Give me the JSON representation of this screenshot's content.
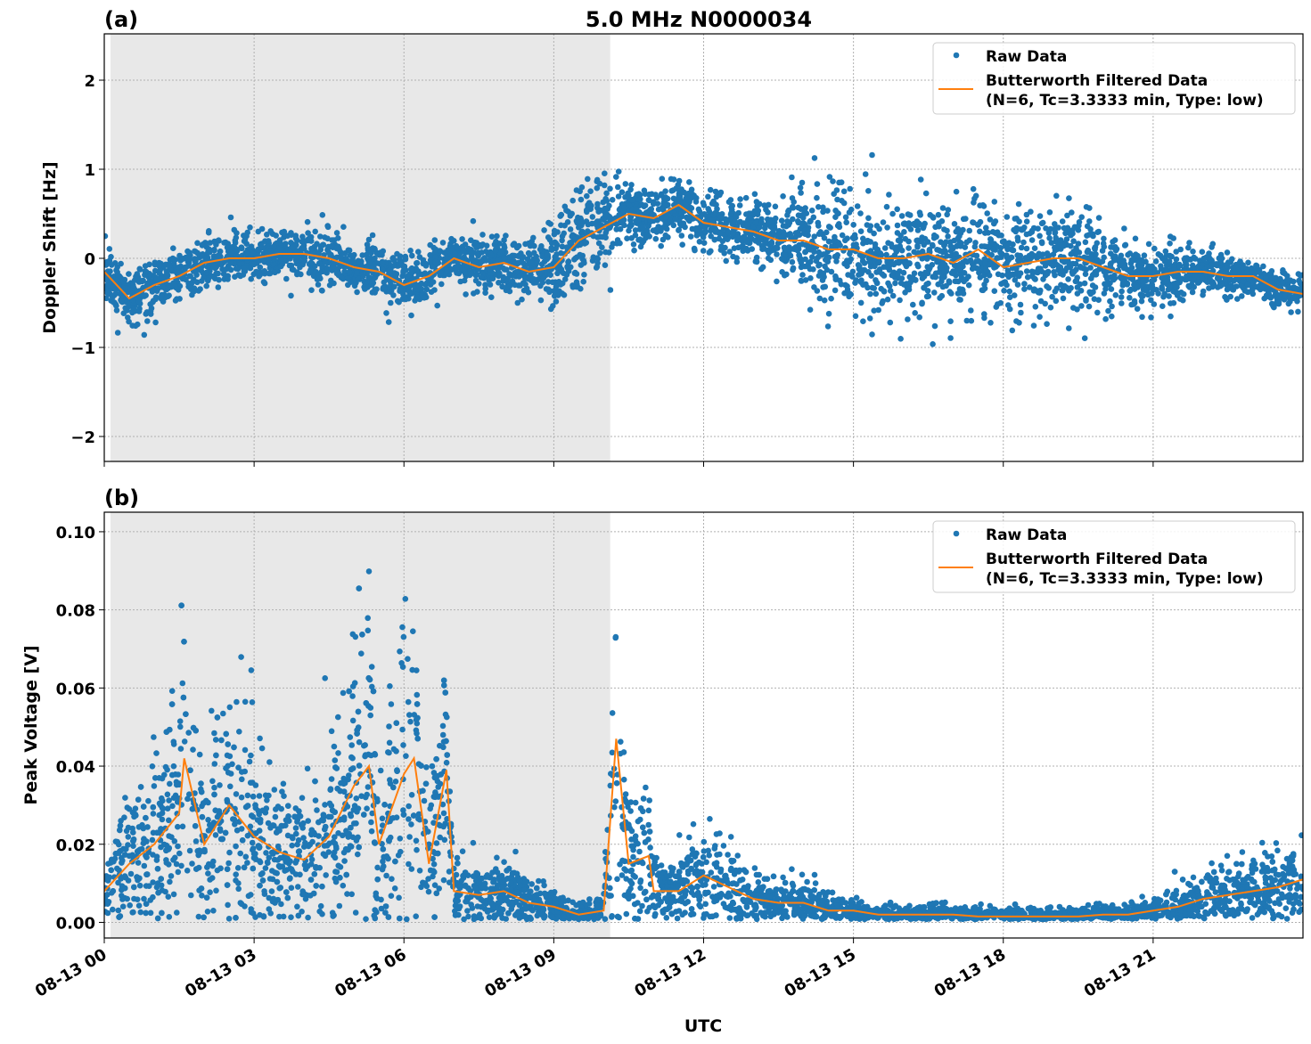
{
  "chart_data": [
    {
      "type": "scatter",
      "panel_label": "(a)",
      "title": "5.0 MHz N0000034",
      "xlabel": "",
      "ylabel": "Doppler Shift [Hz]",
      "xlim_hours": [
        0,
        24
      ],
      "ylim": [
        -2.28,
        2.52
      ],
      "yticks": [
        -2,
        -1,
        0,
        1,
        2
      ],
      "ytick_labels": [
        "−2",
        "−1",
        "0",
        "1",
        "2"
      ],
      "grid": true,
      "shaded_interval_hours": [
        0.125,
        10.13
      ],
      "shade_color": "#e8e8e8",
      "legend": {
        "placement": "top-right",
        "entries": [
          "Raw Data",
          "Butterworth Filtered Data",
          "(N=6, Tc=3.3333 min, Type: low)"
        ]
      },
      "series": [
        {
          "name": "Raw Data",
          "kind": "scatter",
          "color": "#1f77b4"
        },
        {
          "name": "Butterworth Filtered Data",
          "kind": "line",
          "color": "#ff7f0e",
          "x": [
            0,
            0.5,
            1,
            1.5,
            2,
            2.5,
            3,
            3.5,
            4,
            4.5,
            5,
            5.5,
            6,
            6.5,
            7,
            7.5,
            8,
            8.5,
            9,
            9.5,
            10,
            10.5,
            11,
            11.5,
            12,
            12.5,
            13,
            13.5,
            14,
            14.5,
            15,
            15.5,
            16,
            16.5,
            17,
            17.5,
            18,
            18.5,
            19,
            19.5,
            20,
            20.5,
            21,
            21.5,
            22,
            22.5,
            23,
            23.5,
            24
          ],
          "y": [
            -0.15,
            -0.45,
            -0.3,
            -0.2,
            -0.05,
            0.0,
            0.0,
            0.05,
            0.05,
            0.0,
            -0.1,
            -0.15,
            -0.3,
            -0.2,
            0.0,
            -0.1,
            -0.05,
            -0.15,
            -0.1,
            0.2,
            0.35,
            0.5,
            0.45,
            0.6,
            0.4,
            0.35,
            0.3,
            0.2,
            0.2,
            0.1,
            0.1,
            0.0,
            0.0,
            0.05,
            -0.05,
            0.1,
            -0.1,
            -0.05,
            0.0,
            0.0,
            -0.1,
            -0.2,
            -0.2,
            -0.15,
            -0.15,
            -0.2,
            -0.2,
            -0.35,
            -0.4
          ],
          "raw_spread": [
            0.3,
            0.3,
            0.3,
            0.3,
            0.3,
            0.3,
            0.3,
            0.3,
            0.3,
            0.3,
            0.3,
            0.3,
            0.3,
            0.3,
            0.3,
            0.3,
            0.3,
            0.35,
            0.45,
            0.55,
            0.55,
            0.35,
            0.3,
            0.3,
            0.3,
            0.3,
            0.35,
            0.4,
            0.5,
            0.6,
            0.6,
            0.6,
            0.6,
            0.6,
            0.6,
            0.65,
            0.6,
            0.6,
            0.6,
            0.6,
            0.5,
            0.35,
            0.35,
            0.3,
            0.25,
            0.2,
            0.2,
            0.2,
            0.2
          ]
        }
      ]
    },
    {
      "type": "scatter",
      "panel_label": "(b)",
      "xlabel": "UTC",
      "ylabel": "Peak Voltage [V]",
      "xlim_hours": [
        0,
        24
      ],
      "ylim": [
        -0.004,
        0.105
      ],
      "yticks": [
        0,
        0.02,
        0.04,
        0.06,
        0.08,
        0.1
      ],
      "ytick_labels": [
        "0.00",
        "0.02",
        "0.04",
        "0.06",
        "0.08",
        "0.10"
      ],
      "xticks_hours": [
        0,
        3,
        6,
        9,
        12,
        15,
        18,
        21
      ],
      "xtick_labels": [
        "08-13 00",
        "08-13 03",
        "08-13 06",
        "08-13 09",
        "08-13 12",
        "08-13 15",
        "08-13 18",
        "08-13 21"
      ],
      "grid": true,
      "shaded_interval_hours": [
        0.125,
        10.13
      ],
      "legend": {
        "placement": "top-right",
        "entries": [
          "Raw Data",
          "Butterworth Filtered Data",
          "(N=6, Tc=3.3333 min, Type: low)"
        ]
      },
      "series": [
        {
          "name": "Raw Data",
          "kind": "scatter",
          "color": "#1f77b4"
        },
        {
          "name": "Butterworth Filtered Data",
          "kind": "line",
          "color": "#ff7f0e",
          "x": [
            0,
            0.5,
            1,
            1.5,
            1.6,
            2,
            2.5,
            3,
            3.5,
            4,
            4.5,
            5,
            5.3,
            5.5,
            6,
            6.2,
            6.5,
            6.85,
            7,
            7.5,
            8,
            8.5,
            9,
            9.5,
            10,
            10.25,
            10.5,
            10.9,
            11,
            11.5,
            12,
            12.5,
            13,
            13.5,
            14,
            14.5,
            15,
            15.5,
            16,
            16.5,
            17,
            17.5,
            18,
            18.5,
            19,
            19.5,
            20,
            20.5,
            21,
            21.5,
            22,
            22.5,
            23,
            23.5,
            24
          ],
          "y": [
            0.008,
            0.015,
            0.02,
            0.028,
            0.042,
            0.02,
            0.03,
            0.022,
            0.018,
            0.016,
            0.022,
            0.035,
            0.04,
            0.02,
            0.038,
            0.042,
            0.015,
            0.039,
            0.008,
            0.007,
            0.008,
            0.005,
            0.004,
            0.002,
            0.003,
            0.047,
            0.015,
            0.017,
            0.008,
            0.008,
            0.012,
            0.009,
            0.006,
            0.005,
            0.005,
            0.003,
            0.003,
            0.002,
            0.002,
            0.002,
            0.002,
            0.0015,
            0.0015,
            0.0015,
            0.0015,
            0.0015,
            0.002,
            0.002,
            0.003,
            0.004,
            0.006,
            0.007,
            0.008,
            0.009,
            0.011
          ],
          "raw_spread_ratio": 0.55
        }
      ]
    }
  ]
}
